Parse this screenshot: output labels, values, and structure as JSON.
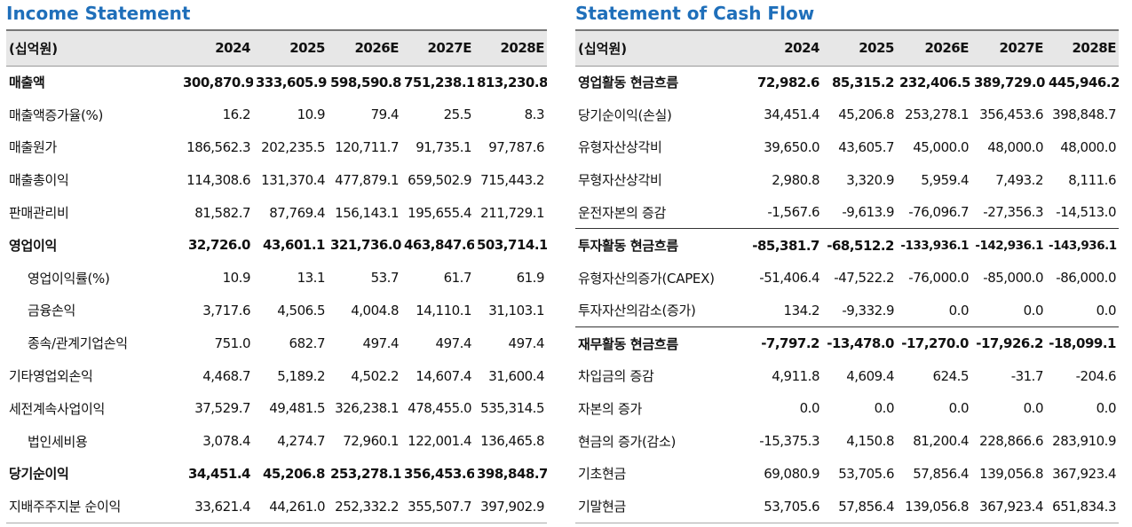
{
  "income": {
    "title": "Income Statement",
    "headers": [
      "(십억원)",
      "2024",
      "2025",
      "2026E",
      "2027E",
      "2028E"
    ],
    "rows": [
      {
        "label": "매출액",
        "values": [
          "300,870.9",
          "333,605.9",
          "598,590.8",
          "751,238.1",
          "813,230.8"
        ]
      },
      {
        "label": "매출액증가율(%)",
        "values": [
          "16.2",
          "10.9",
          "79.4",
          "25.5",
          "8.3"
        ]
      },
      {
        "label": "매출원가",
        "values": [
          "186,562.3",
          "202,235.5",
          "120,711.7",
          "91,735.1",
          "97,787.6"
        ]
      },
      {
        "label": "매출총이익",
        "values": [
          "114,308.6",
          "131,370.4",
          "477,879.1",
          "659,502.9",
          "715,443.2"
        ]
      },
      {
        "label": "판매관리비",
        "values": [
          "81,582.7",
          "87,769.4",
          "156,143.1",
          "195,655.4",
          "211,729.1"
        ]
      },
      {
        "label": "영업이익",
        "values": [
          "32,726.0",
          "43,601.1",
          "321,736.0",
          "463,847.6",
          "503,714.1"
        ]
      },
      {
        "label": "영업이익률(%)",
        "values": [
          "10.9",
          "13.1",
          "53.7",
          "61.7",
          "61.9"
        ]
      },
      {
        "label": "금융손익",
        "values": [
          "3,717.6",
          "4,506.5",
          "4,004.8",
          "14,110.1",
          "31,103.1"
        ]
      },
      {
        "label": "종속/관계기업손익",
        "values": [
          "751.0",
          "682.7",
          "497.4",
          "497.4",
          "497.4"
        ]
      },
      {
        "label": "기타영업외손익",
        "values": [
          "4,468.7",
          "5,189.2",
          "4,502.2",
          "14,607.4",
          "31,600.4"
        ]
      },
      {
        "label": "세전계속사업이익",
        "values": [
          "37,529.7",
          "49,481.5",
          "326,238.1",
          "478,455.0",
          "535,314.5"
        ]
      },
      {
        "label": "법인세비용",
        "values": [
          "3,078.4",
          "4,274.7",
          "72,960.1",
          "122,001.4",
          "136,465.8"
        ]
      },
      {
        "label": "당기순이익",
        "values": [
          "34,451.4",
          "45,206.8",
          "253,278.1",
          "356,453.6",
          "398,848.7"
        ]
      },
      {
        "label": "지배주주지분 순이익",
        "values": [
          "33,621.4",
          "44,261.0",
          "252,332.2",
          "355,507.7",
          "397,902.9"
        ]
      }
    ]
  },
  "cashflow": {
    "title": "Statement of Cash Flow",
    "headers": [
      "(십억원)",
      "2024",
      "2025",
      "2026E",
      "2027E",
      "2028E"
    ],
    "rows": [
      {
        "label": "영업활동 현금흐름",
        "values": [
          "72,982.6",
          "85,315.2",
          "232,406.5",
          "389,729.0",
          "445,946.2"
        ]
      },
      {
        "label": "당기순이익(손실)",
        "values": [
          "34,451.4",
          "45,206.8",
          "253,278.1",
          "356,453.6",
          "398,848.7"
        ]
      },
      {
        "label": "유형자산상각비",
        "values": [
          "39,650.0",
          "43,605.7",
          "45,000.0",
          "48,000.0",
          "48,000.0"
        ]
      },
      {
        "label": "무형자산상각비",
        "values": [
          "2,980.8",
          "3,320.9",
          "5,959.4",
          "7,493.2",
          "8,111.6"
        ]
      },
      {
        "label": "운전자본의 증감",
        "values": [
          "-1,567.6",
          "-9,613.9",
          "-76,096.7",
          "-27,356.3",
          "-14,513.0"
        ]
      },
      {
        "label": "투자활동 현금흐름",
        "values": [
          "-85,381.7",
          "-68,512.2",
          "-133,936.1",
          "-142,936.1",
          "-143,936.1"
        ]
      },
      {
        "label": "유형자산의증가(CAPEX)",
        "values": [
          "-51,406.4",
          "-47,522.2",
          "-76,000.0",
          "-85,000.0",
          "-86,000.0"
        ]
      },
      {
        "label": "투자자산의감소(증가)",
        "values": [
          "134.2",
          "-9,332.9",
          "0.0",
          "0.0",
          "0.0"
        ]
      },
      {
        "label": "재무활동 현금흐름",
        "values": [
          "-7,797.2",
          "-13,478.0",
          "-17,270.0",
          "-17,926.2",
          "-18,099.1"
        ]
      },
      {
        "label": "차입금의 증감",
        "values": [
          "4,911.8",
          "4,609.4",
          "624.5",
          "-31.7",
          "-204.6"
        ]
      },
      {
        "label": "자본의 증가",
        "values": [
          "0.0",
          "0.0",
          "0.0",
          "0.0",
          "0.0"
        ]
      },
      {
        "label": "현금의 증가(감소)",
        "values": [
          "-15,375.3",
          "4,150.8",
          "81,200.4",
          "228,866.6",
          "283,910.9"
        ]
      },
      {
        "label": "기초현금",
        "values": [
          "69,080.9",
          "53,705.6",
          "57,856.4",
          "139,056.8",
          "367,923.4"
        ]
      },
      {
        "label": "기말현금",
        "values": [
          "53,705.6",
          "57,856.4",
          "139,056.8",
          "367,923.4",
          "651,834.3"
        ]
      }
    ]
  }
}
